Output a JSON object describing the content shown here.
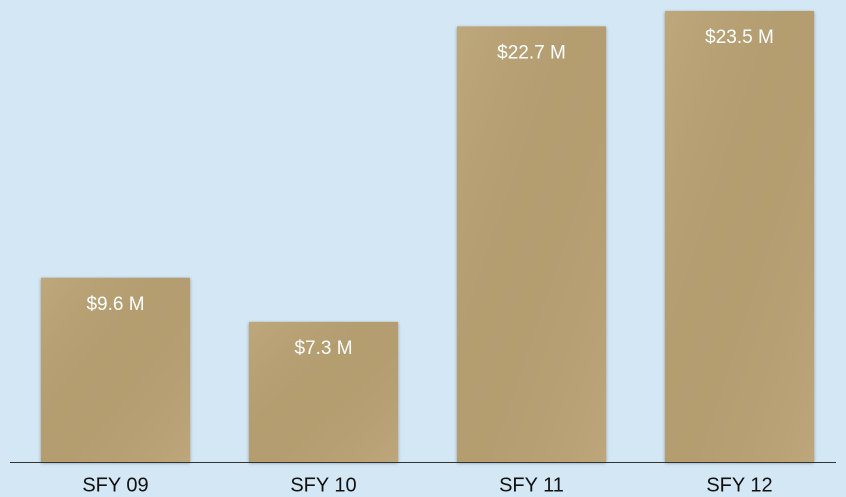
{
  "chart_data": {
    "type": "bar",
    "categories": [
      "SFY 09",
      "SFY 10",
      "SFY 11",
      "SFY 12"
    ],
    "values": [
      9.6,
      7.3,
      22.7,
      23.5
    ],
    "value_labels": [
      "$9.6 M",
      "$7.3 M",
      "$22.7 M",
      "$23.5 M"
    ],
    "color": "#b9a273"
  }
}
